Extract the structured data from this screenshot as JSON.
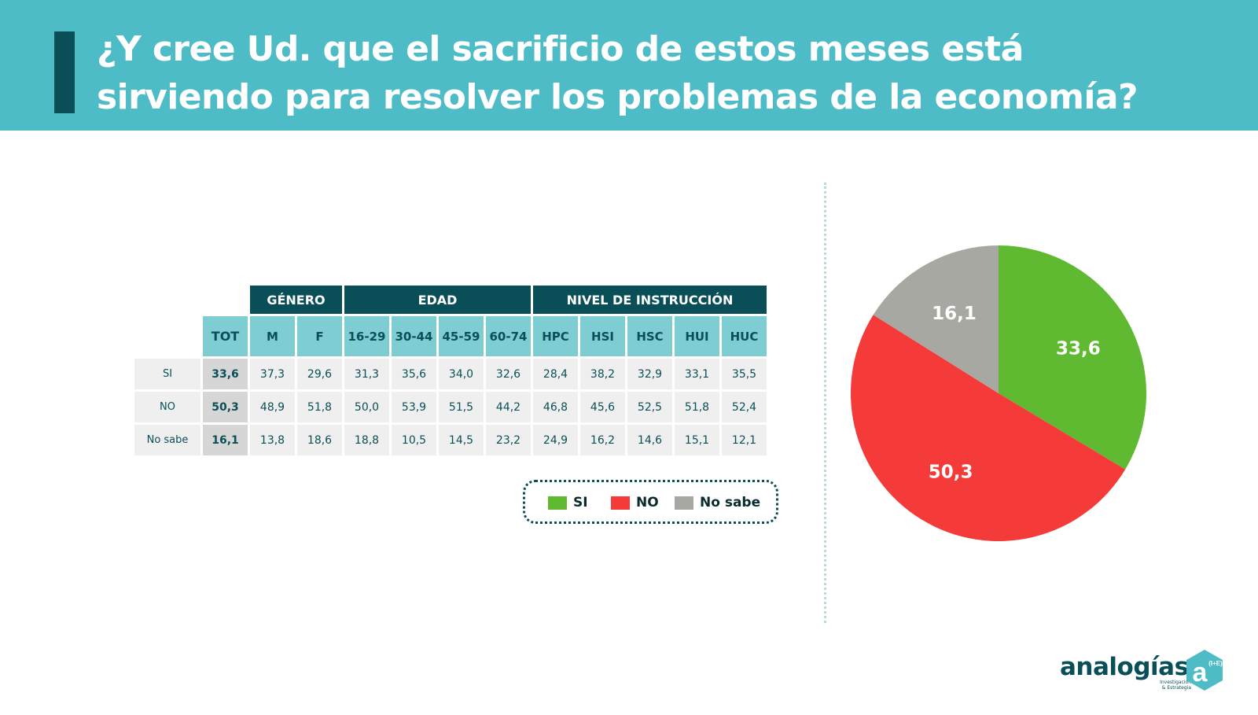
{
  "title_lines": [
    "¿Y cree Ud. que el sacrificio de estos meses está",
    "sirviendo para resolver los problemas de la economía?"
  ],
  "table": {
    "groups": [
      {
        "label": "GÉNERO",
        "span": 2
      },
      {
        "label": "EDAD",
        "span": 4
      },
      {
        "label": "NIVEL DE INSTRUCCIÓN",
        "span": 5
      }
    ],
    "columns": [
      "TOT",
      "M",
      "F",
      "16-29",
      "30-44",
      "45-59",
      "60-74",
      "HPC",
      "HSI",
      "HSC",
      "HUI",
      "HUC"
    ],
    "rows": [
      {
        "label": "SI",
        "values": [
          "33,6",
          "37,3",
          "29,6",
          "31,3",
          "35,6",
          "34,0",
          "32,6",
          "28,4",
          "38,2",
          "32,9",
          "33,1",
          "35,5"
        ]
      },
      {
        "label": "NO",
        "values": [
          "50,3",
          "48,9",
          "51,8",
          "50,0",
          "53,9",
          "51,5",
          "44,2",
          "46,8",
          "45,6",
          "52,5",
          "51,8",
          "52,4"
        ]
      },
      {
        "label": "No sabe",
        "values": [
          "16,1",
          "13,8",
          "18,6",
          "18,8",
          "10,5",
          "14,5",
          "23,2",
          "24,9",
          "16,2",
          "14,6",
          "15,1",
          "12,1"
        ]
      }
    ]
  },
  "legend": [
    {
      "label": "SI",
      "color": "#5fba32"
    },
    {
      "label": "NO",
      "color": "#f53a3a"
    },
    {
      "label": "No sabe",
      "color": "#a8a8a2"
    }
  ],
  "chart_data": {
    "type": "pie",
    "slices": [
      {
        "name": "SI",
        "value": 33.6,
        "label": "33,6",
        "color": "#5fba32"
      },
      {
        "name": "NO",
        "value": 50.3,
        "label": "50,3",
        "color": "#f53a3a"
      },
      {
        "name": "No sabe",
        "value": 16.1,
        "label": "16,1",
        "color": "#a8a8a2"
      }
    ],
    "start": "12 o'clock",
    "direction": "clockwise"
  },
  "logo": {
    "name": "analogías",
    "tagline_lines": [
      "Investigación",
      "& Estrategia"
    ],
    "mark_letter": "a",
    "mark_sup": "(I+E)"
  },
  "colors": {
    "header_bg": "#4dbcc6",
    "dark_teal": "#0a4f57",
    "light_teal": "#7dcdd2"
  }
}
